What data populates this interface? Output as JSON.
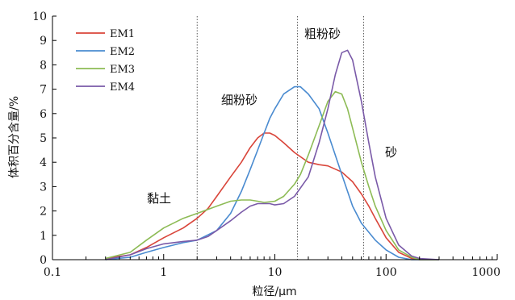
{
  "chart_data": {
    "type": "line",
    "x_scale": "log",
    "xlim": [
      0.1,
      1000
    ],
    "ylim": [
      0,
      10
    ],
    "xlabel": "粒径/μm",
    "ylabel": "体积百分含量/%",
    "x_ticks": [
      "0.1",
      "1",
      "10",
      "100",
      "1000"
    ],
    "y_ticks": [
      "0",
      "1",
      "2",
      "3",
      "4",
      "5",
      "6",
      "7",
      "8",
      "9",
      "10"
    ],
    "grid": false,
    "legend_position": "top-left",
    "boundaries": [
      2,
      16,
      63
    ],
    "annotations": [
      "黏土",
      "细粉砂",
      "粗粉砂",
      "砂"
    ],
    "series": [
      {
        "name": "EM1",
        "color": "#d9453a",
        "points": [
          [
            0.3,
            0.05
          ],
          [
            0.5,
            0.2
          ],
          [
            0.7,
            0.5
          ],
          [
            1,
            0.9
          ],
          [
            1.5,
            1.3
          ],
          [
            2,
            1.7
          ],
          [
            2.5,
            2.1
          ],
          [
            3,
            2.6
          ],
          [
            4,
            3.4
          ],
          [
            5,
            4.0
          ],
          [
            6,
            4.6
          ],
          [
            7,
            5.0
          ],
          [
            8,
            5.2
          ],
          [
            9,
            5.2
          ],
          [
            10,
            5.1
          ],
          [
            12,
            4.8
          ],
          [
            15,
            4.4
          ],
          [
            20,
            4.0
          ],
          [
            25,
            3.9
          ],
          [
            30,
            3.85
          ],
          [
            40,
            3.6
          ],
          [
            50,
            3.2
          ],
          [
            60,
            2.7
          ],
          [
            70,
            2.2
          ],
          [
            80,
            1.7
          ],
          [
            100,
            0.9
          ],
          [
            130,
            0.3
          ],
          [
            170,
            0.05
          ],
          [
            200,
            0.0
          ],
          [
            300,
            0.0
          ]
        ]
      },
      {
        "name": "EM2",
        "color": "#4a8bd0",
        "points": [
          [
            0.3,
            0.0
          ],
          [
            0.5,
            0.1
          ],
          [
            0.7,
            0.3
          ],
          [
            1,
            0.5
          ],
          [
            1.5,
            0.7
          ],
          [
            2,
            0.8
          ],
          [
            3,
            1.2
          ],
          [
            4,
            1.9
          ],
          [
            5,
            2.8
          ],
          [
            6,
            3.7
          ],
          [
            7,
            4.5
          ],
          [
            8,
            5.2
          ],
          [
            9,
            5.8
          ],
          [
            10,
            6.2
          ],
          [
            12,
            6.8
          ],
          [
            15,
            7.1
          ],
          [
            17,
            7.1
          ],
          [
            20,
            6.8
          ],
          [
            25,
            6.2
          ],
          [
            30,
            5.2
          ],
          [
            40,
            3.5
          ],
          [
            50,
            2.2
          ],
          [
            60,
            1.5
          ],
          [
            80,
            0.8
          ],
          [
            100,
            0.4
          ],
          [
            130,
            0.1
          ],
          [
            170,
            0.0
          ],
          [
            300,
            0.0
          ]
        ]
      },
      {
        "name": "EM3",
        "color": "#8dbb55",
        "points": [
          [
            0.3,
            0.05
          ],
          [
            0.5,
            0.3
          ],
          [
            0.7,
            0.8
          ],
          [
            1,
            1.3
          ],
          [
            1.5,
            1.7
          ],
          [
            2,
            1.9
          ],
          [
            3,
            2.2
          ],
          [
            4,
            2.4
          ],
          [
            5,
            2.45
          ],
          [
            6,
            2.45
          ],
          [
            7,
            2.4
          ],
          [
            8,
            2.35
          ],
          [
            10,
            2.4
          ],
          [
            12,
            2.6
          ],
          [
            15,
            3.1
          ],
          [
            17,
            3.5
          ],
          [
            20,
            4.3
          ],
          [
            25,
            5.5
          ],
          [
            30,
            6.5
          ],
          [
            35,
            6.9
          ],
          [
            40,
            6.8
          ],
          [
            45,
            6.2
          ],
          [
            50,
            5.4
          ],
          [
            60,
            4.0
          ],
          [
            70,
            3.0
          ],
          [
            80,
            2.2
          ],
          [
            100,
            1.2
          ],
          [
            130,
            0.4
          ],
          [
            170,
            0.1
          ],
          [
            200,
            0.0
          ],
          [
            300,
            0.0
          ]
        ]
      },
      {
        "name": "EM4",
        "color": "#7a5aa8",
        "points": [
          [
            0.3,
            0.0
          ],
          [
            0.5,
            0.2
          ],
          [
            0.7,
            0.45
          ],
          [
            1,
            0.65
          ],
          [
            1.5,
            0.75
          ],
          [
            2,
            0.8
          ],
          [
            2.5,
            0.95
          ],
          [
            3,
            1.2
          ],
          [
            4,
            1.6
          ],
          [
            5,
            1.95
          ],
          [
            6,
            2.2
          ],
          [
            7,
            2.3
          ],
          [
            8,
            2.3
          ],
          [
            9,
            2.3
          ],
          [
            10,
            2.25
          ],
          [
            12,
            2.3
          ],
          [
            15,
            2.6
          ],
          [
            20,
            3.4
          ],
          [
            25,
            4.8
          ],
          [
            30,
            6.2
          ],
          [
            35,
            7.6
          ],
          [
            40,
            8.5
          ],
          [
            45,
            8.6
          ],
          [
            50,
            8.2
          ],
          [
            60,
            6.5
          ],
          [
            70,
            4.8
          ],
          [
            80,
            3.4
          ],
          [
            100,
            1.7
          ],
          [
            130,
            0.6
          ],
          [
            170,
            0.15
          ],
          [
            200,
            0.05
          ],
          [
            300,
            0.0
          ]
        ]
      }
    ]
  }
}
